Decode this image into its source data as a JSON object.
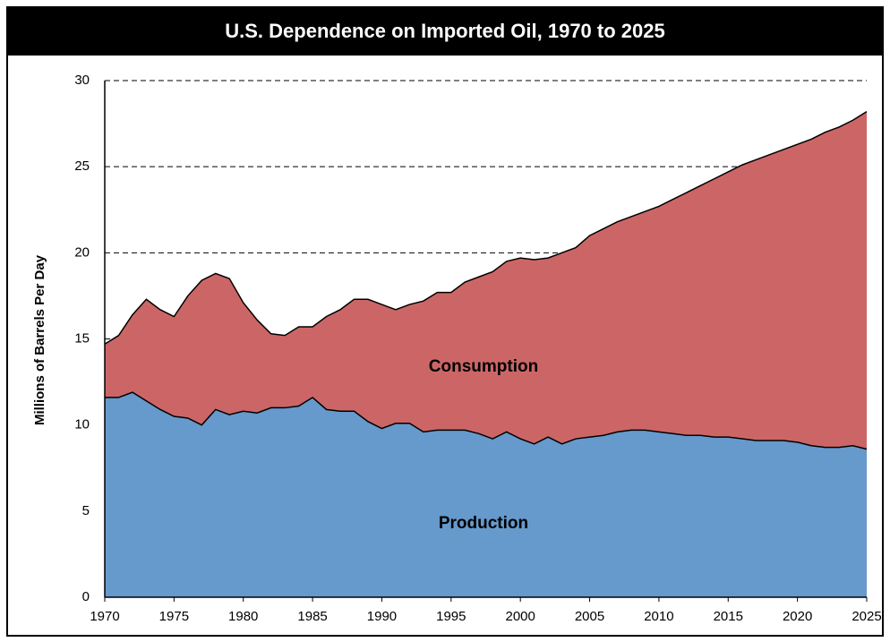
{
  "chart_data": {
    "type": "area",
    "title": "U.S. Dependence on Imported Oil, 1970 to 2025",
    "ylabel": "Millions of Barrels Per Day",
    "x": [
      1970,
      1971,
      1972,
      1973,
      1974,
      1975,
      1976,
      1977,
      1978,
      1979,
      1980,
      1981,
      1982,
      1983,
      1984,
      1985,
      1986,
      1987,
      1988,
      1989,
      1990,
      1991,
      1992,
      1993,
      1994,
      1995,
      1996,
      1997,
      1998,
      1999,
      2000,
      2001,
      2002,
      2003,
      2004,
      2005,
      2006,
      2007,
      2008,
      2009,
      2010,
      2011,
      2012,
      2013,
      2014,
      2015,
      2016,
      2017,
      2018,
      2019,
      2020,
      2021,
      2022,
      2023,
      2024,
      2025
    ],
    "series": [
      {
        "name": "Consumption",
        "color": "#cc6666",
        "values": [
          14.7,
          15.2,
          16.4,
          17.3,
          16.7,
          16.3,
          17.5,
          18.4,
          18.8,
          18.5,
          17.1,
          16.1,
          15.3,
          15.2,
          15.7,
          15.7,
          16.3,
          16.7,
          17.3,
          17.3,
          17.0,
          16.7,
          17.0,
          17.2,
          17.7,
          17.7,
          18.3,
          18.6,
          18.9,
          19.5,
          19.7,
          19.6,
          19.7,
          20.0,
          20.3,
          21.0,
          21.4,
          21.8,
          22.1,
          22.4,
          22.7,
          23.1,
          23.5,
          23.9,
          24.3,
          24.7,
          25.1,
          25.4,
          25.7,
          26.0,
          26.3,
          26.6,
          27.0,
          27.3,
          27.7,
          28.2
        ]
      },
      {
        "name": "Production",
        "color": "#6699cc",
        "values": [
          11.6,
          11.6,
          11.9,
          11.4,
          10.9,
          10.5,
          10.4,
          10.0,
          10.9,
          10.6,
          10.8,
          10.7,
          11.0,
          11.0,
          11.1,
          11.6,
          10.9,
          10.8,
          10.8,
          10.2,
          9.8,
          10.1,
          10.1,
          9.6,
          9.7,
          9.7,
          9.7,
          9.5,
          9.2,
          9.6,
          9.2,
          8.9,
          9.3,
          8.9,
          9.2,
          9.3,
          9.4,
          9.6,
          9.7,
          9.7,
          9.6,
          9.5,
          9.4,
          9.4,
          9.3,
          9.3,
          9.2,
          9.1,
          9.1,
          9.1,
          9.0,
          8.8,
          8.7,
          8.7,
          8.8,
          8.6
        ]
      }
    ],
    "xlim": [
      1970,
      2025
    ],
    "xticks": [
      1970,
      1975,
      1980,
      1985,
      1990,
      1995,
      2000,
      2005,
      2010,
      2015,
      2020,
      2025
    ],
    "ylim": [
      0,
      30
    ],
    "yticks": [
      0,
      5,
      10,
      15,
      20,
      25,
      30
    ],
    "grid": true
  }
}
